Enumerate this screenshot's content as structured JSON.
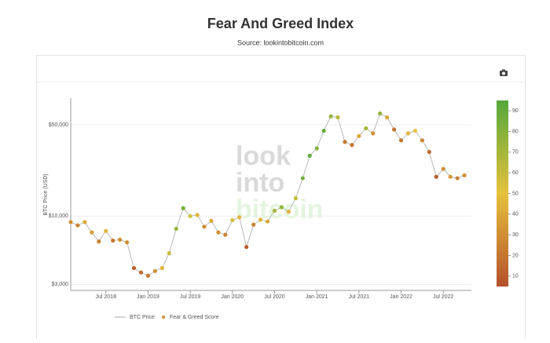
{
  "chart_data": {
    "type": "scatter",
    "title": "Fear And Greed Index",
    "subtitle": "Source: lookintobitcoin.com",
    "watermark": [
      "look",
      "into",
      "bitcoin"
    ],
    "y_label": "BTC Price (USD)",
    "log_y": true,
    "grid": true,
    "x": [
      "2018-02",
      "2018-03",
      "2018-04",
      "2018-05",
      "2018-06",
      "2018-07",
      "2018-08",
      "2018-09",
      "2018-10",
      "2018-11",
      "2018-12",
      "2019-01",
      "2019-02",
      "2019-03",
      "2019-04",
      "2019-05",
      "2019-06",
      "2019-07",
      "2019-08",
      "2019-09",
      "2019-10",
      "2019-11",
      "2019-12",
      "2020-01",
      "2020-02",
      "2020-03",
      "2020-04",
      "2020-05",
      "2020-06",
      "2020-07",
      "2020-08",
      "2020-09",
      "2020-10",
      "2020-11",
      "2020-12",
      "2021-01",
      "2021-02",
      "2021-03",
      "2021-04",
      "2021-05",
      "2021-06",
      "2021-07",
      "2021-08",
      "2021-09",
      "2021-10",
      "2021-11",
      "2021-12",
      "2022-01",
      "2022-02",
      "2022-03",
      "2022-04",
      "2022-05",
      "2022-06",
      "2022-07",
      "2022-08",
      "2022-09",
      "2022-10"
    ],
    "series": [
      {
        "name": "BTC Price",
        "color": "#aaaaaa",
        "values": [
          9000,
          8500,
          9000,
          7500,
          6400,
          7700,
          6500,
          6600,
          6300,
          4000,
          3700,
          3500,
          3800,
          4000,
          5200,
          8000,
          11500,
          10000,
          10200,
          8300,
          9200,
          7500,
          7200,
          9300,
          9800,
          5800,
          8600,
          9400,
          9100,
          11000,
          11700,
          10800,
          13700,
          19500,
          29000,
          33000,
          45000,
          58000,
          57000,
          37000,
          35000,
          41000,
          47000,
          43000,
          61000,
          57000,
          46000,
          38000,
          43000,
          45000,
          38000,
          31000,
          20000,
          23000,
          20000,
          19500,
          20500
        ]
      },
      {
        "name": "Fear & Greed Score",
        "values": [
          30,
          25,
          40,
          35,
          25,
          45,
          20,
          30,
          30,
          10,
          15,
          20,
          30,
          45,
          60,
          75,
          85,
          55,
          45,
          30,
          40,
          30,
          25,
          55,
          45,
          10,
          25,
          45,
          40,
          70,
          75,
          45,
          60,
          85,
          90,
          80,
          90,
          75,
          65,
          20,
          20,
          40,
          70,
          30,
          75,
          40,
          20,
          20,
          45,
          50,
          25,
          15,
          10,
          30,
          35,
          25,
          30
        ]
      }
    ],
    "marker_color": "#e08a2e",
    "xlim": [
      "2018-02",
      "2022-11"
    ],
    "xticks": [
      {
        "value": "2018-07",
        "label": "Jul 2018"
      },
      {
        "value": "2019-01",
        "label": "Jan 2019"
      },
      {
        "value": "2019-07",
        "label": "Jul 2019"
      },
      {
        "value": "2020-01",
        "label": "Jan 2020"
      },
      {
        "value": "2020-07",
        "label": "Jul 2020"
      },
      {
        "value": "2021-01",
        "label": "Jan 2021"
      },
      {
        "value": "2021-07",
        "label": "Jul 2021"
      },
      {
        "value": "2022-01",
        "label": "Jan 2022"
      },
      {
        "value": "2022-07",
        "label": "Jul 2022"
      }
    ],
    "ylim": [
      2700,
      80000
    ],
    "yticks": [
      {
        "value": 3000,
        "label": "$3,000"
      },
      {
        "value": 10000,
        "label": "$10,000"
      },
      {
        "value": 50000,
        "label": "$50,000"
      }
    ],
    "clim": [
      5,
      95
    ],
    "cticks": [
      10,
      20,
      30,
      40,
      50,
      60,
      70,
      80,
      90
    ],
    "colorscale": [
      "#b4502b",
      "#e6c13c",
      "#55a83c"
    ]
  }
}
